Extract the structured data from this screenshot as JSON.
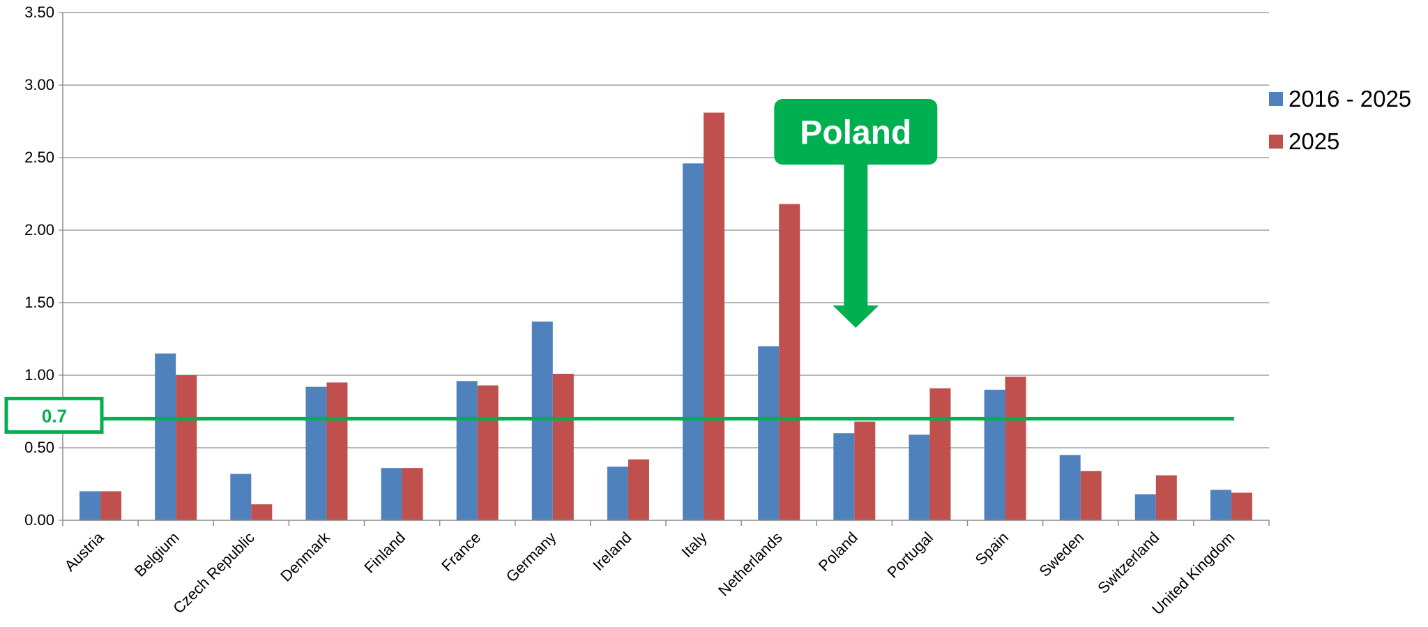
{
  "chart_data": {
    "type": "bar",
    "categories": [
      "Austria",
      "Belgium",
      "Czech Republic",
      "Denmark",
      "Finland",
      "France",
      "Germany",
      "Ireland",
      "Italy",
      "Netherlands",
      "Poland",
      "Portugal",
      "Spain",
      "Sweden",
      "Switzerland",
      "United Kingdom"
    ],
    "series": [
      {
        "name": "2016 - 2025",
        "color": "#4f81bd",
        "values": [
          0.2,
          1.15,
          0.32,
          0.92,
          0.36,
          0.96,
          1.37,
          0.37,
          2.46,
          1.2,
          0.6,
          0.59,
          0.9,
          0.45,
          0.18,
          0.21
        ]
      },
      {
        "name": "2025",
        "color": "#c0504d",
        "values": [
          0.2,
          1.0,
          0.11,
          0.95,
          0.36,
          0.93,
          1.01,
          0.42,
          2.81,
          2.18,
          0.68,
          0.91,
          0.99,
          0.34,
          0.31,
          0.19
        ]
      }
    ],
    "ylim": [
      0,
      3.5
    ],
    "yticks": [
      "0.00",
      "0.50",
      "1.00",
      "1.50",
      "2.00",
      "2.50",
      "3.00",
      "3.50"
    ],
    "grid": true,
    "legend_position": "right",
    "reference_line": {
      "value": 0.7,
      "label": "0.7",
      "color": "#00b050"
    },
    "annotation": {
      "label": "Poland",
      "target_category": "Poland",
      "color": "#00b050"
    },
    "title": "",
    "xlabel": "",
    "ylabel": ""
  }
}
